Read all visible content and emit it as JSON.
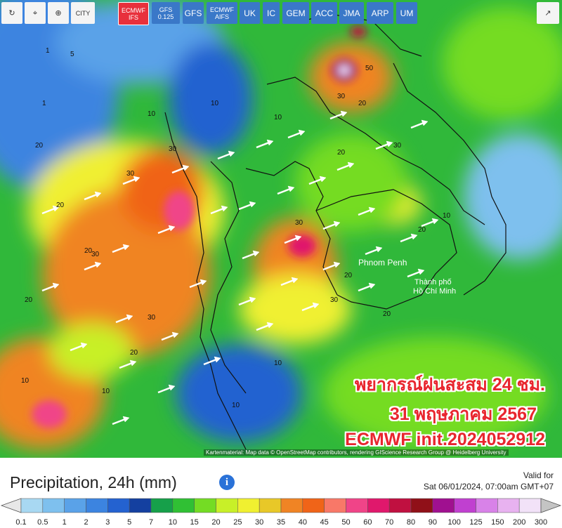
{
  "toolbar": {
    "city": "CITY",
    "models": [
      "ECMWF IFS",
      "GFS 0.125",
      "GFS",
      "ECMWF AIFS",
      "UK",
      "IC",
      "GEM",
      "ACC",
      "JMA",
      "ARP",
      "UM"
    ],
    "active": 0
  },
  "map": {
    "places": [
      "Phnom Penh",
      "Thành phố",
      "Hồ Chí Minh"
    ],
    "contours": [
      "10",
      "20",
      "30",
      "20",
      "10",
      "30",
      "20",
      "30",
      "10",
      "20",
      "30",
      "20",
      "10",
      "50",
      "30",
      "20",
      "10",
      "20",
      "30",
      "20",
      "10",
      "30",
      "20",
      "10",
      "5",
      "1",
      "1",
      "20",
      "30",
      "10"
    ],
    "overlay": [
      "พยากรณ์ฝนสะสม 24 ชม.",
      "31 พฤษภาคม 2567",
      "ECMWF init.2024052912"
    ],
    "attribution": "Kartenmaterial: Map data © OpenStreetMap contributors, rendering GIScience Research Group @ Heidelberg University"
  },
  "panel": {
    "title": "Precipitation, 24h (mm)",
    "valid_label": "Valid for",
    "valid_time": "Sat 06/01/2024, 07:00am GMT+07"
  },
  "legend": {
    "labels": [
      "0.1",
      "0.5",
      "1",
      "2",
      "3",
      "5",
      "7",
      "10",
      "15",
      "20",
      "25",
      "30",
      "35",
      "40",
      "45",
      "50",
      "60",
      "70",
      "80",
      "90",
      "100",
      "125",
      "150",
      "200",
      "300"
    ],
    "colors": [
      "#a8d8f2",
      "#7ec0ee",
      "#5aa2e8",
      "#3c84e0",
      "#2462d0",
      "#1440a0",
      "#16a04a",
      "#30c034",
      "#74dc24",
      "#c8f028",
      "#f0f030",
      "#e8c828",
      "#f08424",
      "#f06418",
      "#f87868",
      "#f04488",
      "#e0186c",
      "#c01040",
      "#901018",
      "#a01090",
      "#c040d0",
      "#d882e8",
      "#e8b2f0",
      "#f2e2f8",
      "#c4c4c4"
    ]
  }
}
